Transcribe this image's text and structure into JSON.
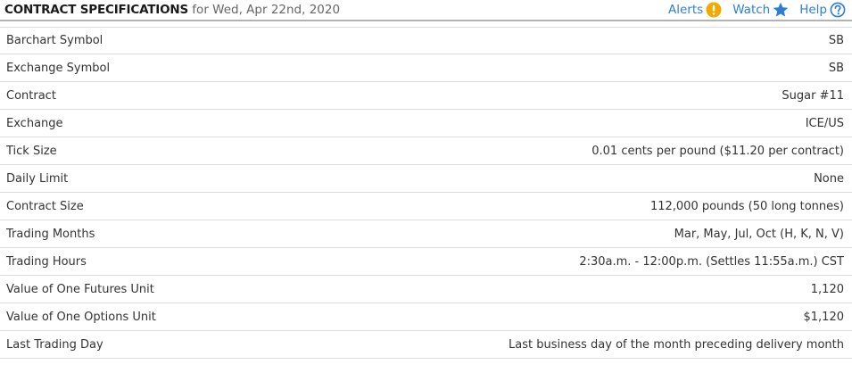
{
  "header": {
    "title": "CONTRACT SPECIFICATIONS",
    "date_text": " for Wed, Apr 22nd, 2020",
    "alerts_label": "Alerts",
    "watch_label": "Watch",
    "help_label": "Help",
    "alerts_icon": "exclamation-circle-icon",
    "watch_icon": "star-icon",
    "help_icon": "question-circle-icon"
  },
  "colors": {
    "link": "#2a7fd4",
    "alert_icon": "#f2a900"
  },
  "specs": [
    {
      "label": "Barchart Symbol",
      "value": "SB"
    },
    {
      "label": "Exchange Symbol",
      "value": "SB"
    },
    {
      "label": "Contract",
      "value": "Sugar #11"
    },
    {
      "label": "Exchange",
      "value": "ICE/US"
    },
    {
      "label": "Tick Size",
      "value": "0.01 cents per pound ($11.20 per contract)"
    },
    {
      "label": "Daily Limit",
      "value": "None"
    },
    {
      "label": "Contract Size",
      "value": "112,000 pounds (50 long tonnes)"
    },
    {
      "label": "Trading Months",
      "value": "Mar, May, Jul, Oct (H, K, N, V)"
    },
    {
      "label": "Trading Hours",
      "value": "2:30a.m. - 12:00p.m. (Settles 11:55a.m.) CST"
    },
    {
      "label": "Value of One Futures Unit",
      "value": "1,120"
    },
    {
      "label": "Value of One Options Unit",
      "value": "$1,120"
    },
    {
      "label": "Last Trading Day",
      "value": "Last business day of the month preceding delivery month"
    }
  ]
}
